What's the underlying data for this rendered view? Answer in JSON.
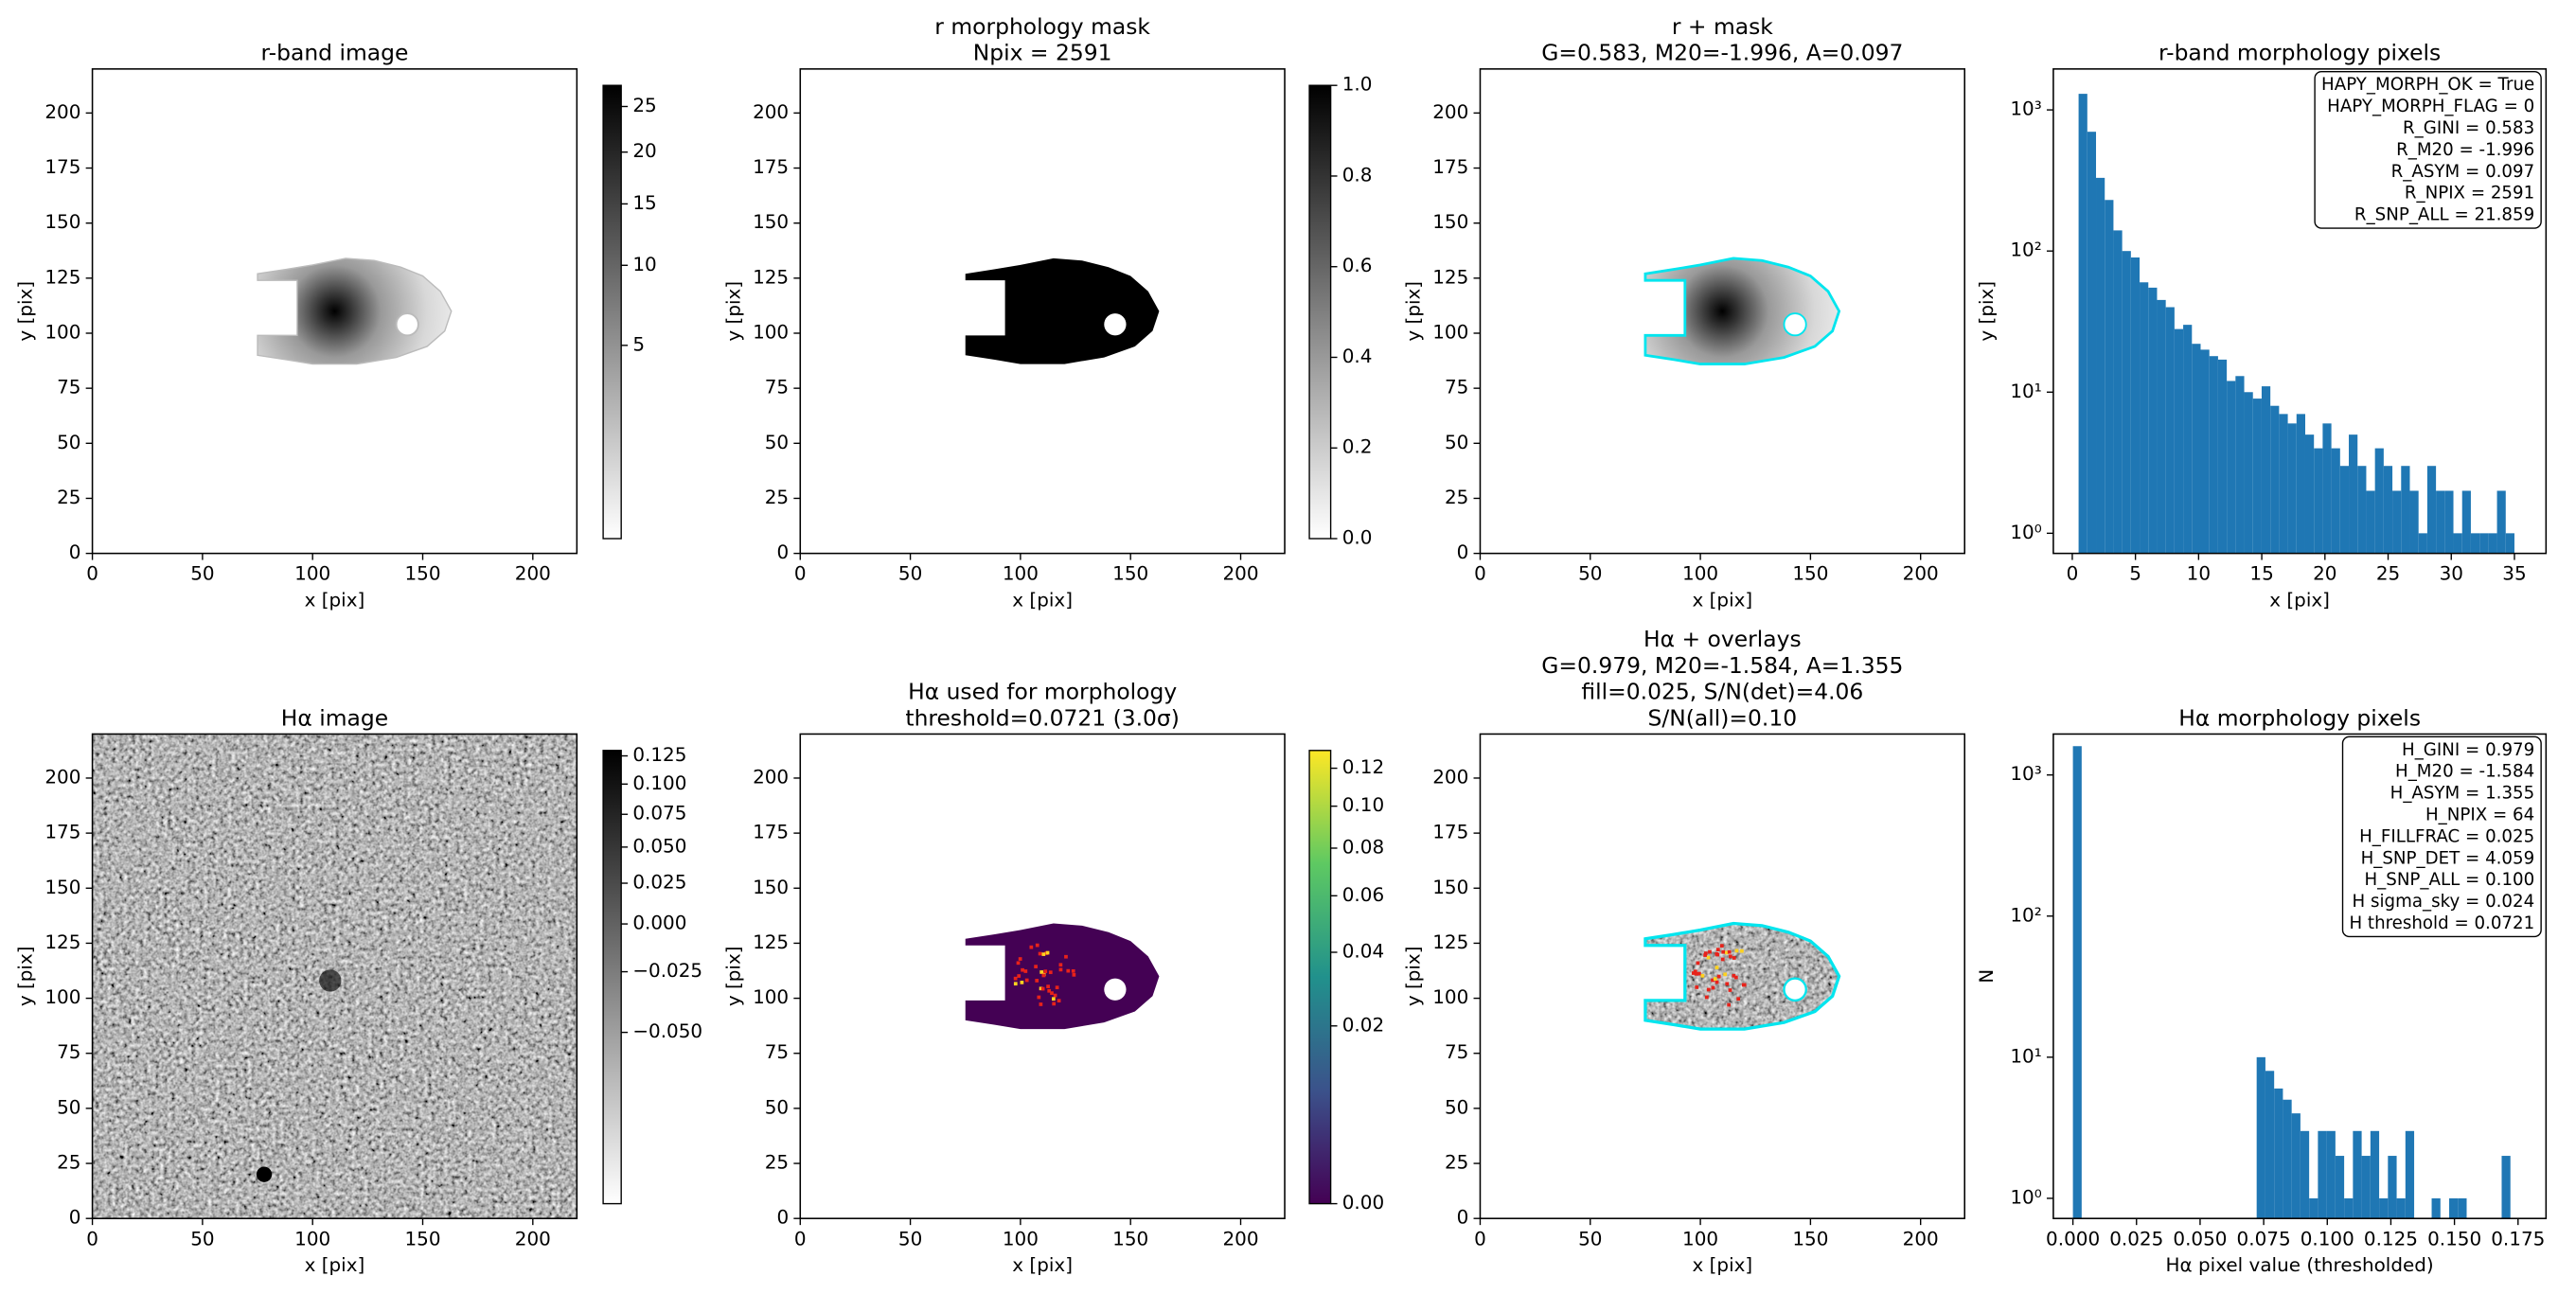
{
  "chart_data": [
    {
      "type": "image",
      "title": [
        "r-band image"
      ],
      "xlabel": "x [pix]",
      "ylabel": "y [pix]",
      "xlim": [
        0,
        220
      ],
      "ylim": [
        0,
        220
      ],
      "xticks": [
        0,
        50,
        100,
        150,
        200
      ],
      "yticks": [
        0,
        25,
        50,
        75,
        100,
        125,
        150,
        175,
        200
      ],
      "colorbar": {
        "lim": [
          0,
          27.5
        ],
        "ticks": [
          5,
          10,
          15,
          20,
          25
        ],
        "scale": "sqrt",
        "colormap": "gray_r"
      }
    },
    {
      "type": "image",
      "title": [
        "r morphology mask",
        "Npix = 2591"
      ],
      "xlabel": "x [pix]",
      "ylabel": "y [pix]",
      "xlim": [
        0,
        220
      ],
      "ylim": [
        0,
        220
      ],
      "xticks": [
        0,
        50,
        100,
        150,
        200
      ],
      "yticks": [
        0,
        25,
        50,
        75,
        100,
        125,
        150,
        175,
        200
      ],
      "colorbar": {
        "lim": [
          0,
          1
        ],
        "ticks": [
          {
            "value": 0,
            "label": "0.0"
          },
          0.2,
          0.4,
          0.6,
          0.8,
          {
            "value": 1,
            "label": "1.0"
          }
        ],
        "scale": "linear",
        "colormap": "gray_r"
      }
    },
    {
      "type": "image",
      "title": [
        "r + mask",
        "G=0.583, M20=-1.996, A=0.097"
      ],
      "xlabel": "x [pix]",
      "ylabel": "y [pix]",
      "xlim": [
        0,
        220
      ],
      "ylim": [
        0,
        220
      ],
      "xticks": [
        0,
        50,
        100,
        150,
        200
      ],
      "yticks": [
        0,
        25,
        50,
        75,
        100,
        125,
        150,
        175,
        200
      ]
    },
    {
      "type": "histogram",
      "title": [
        "r-band morphology pixels"
      ],
      "xlabel": "x [pix]",
      "ylabel": "y [pix]",
      "color": "#1f77b4",
      "log_y": true,
      "xlim": [
        -1.5,
        37.5
      ],
      "ylim": [
        0.72,
        1950
      ],
      "xticks": [
        0,
        5,
        10,
        15,
        20,
        25,
        30,
        35
      ],
      "yticks": [
        {
          "value": 1,
          "label": "10⁰"
        },
        {
          "value": 10,
          "label": "10¹"
        },
        {
          "value": 100,
          "label": "10²"
        },
        {
          "value": 1000,
          "label": "10³"
        }
      ],
      "bins": [
        0.5,
        1.19,
        1.88,
        2.57,
        3.26,
        3.95,
        4.64,
        5.33,
        6.02,
        6.71,
        7.4,
        8.09,
        8.78,
        9.47,
        10.16,
        10.85,
        11.54,
        12.23,
        12.92,
        13.61,
        14.3,
        14.99,
        15.68,
        16.37,
        17.06,
        17.75,
        18.44,
        19.13,
        19.82,
        20.51,
        21.2,
        21.89,
        22.58,
        23.27,
        23.96,
        24.65,
        25.34,
        26.03,
        26.72,
        27.41,
        28.1,
        28.79,
        29.48,
        30.17,
        30.86,
        31.55,
        32.24,
        32.93,
        33.62,
        34.31,
        35.0
      ],
      "values": [
        1300,
        700,
        330,
        230,
        140,
        100,
        90,
        60,
        55,
        45,
        40,
        28,
        30,
        22,
        20,
        18,
        17,
        12,
        13,
        10,
        9,
        11,
        8,
        7,
        6,
        7,
        5,
        4,
        6,
        4,
        3,
        5,
        3,
        2,
        4,
        3,
        2,
        3,
        2,
        1,
        3,
        2,
        2,
        1,
        2,
        1,
        1,
        1,
        2,
        1
      ],
      "annotation_lines": [
        "HAPY_MORPH_OK = True",
        "HAPY_MORPH_FLAG = 0",
        "R_GINI = 0.583",
        "R_M20 = -1.996",
        "R_ASYM = 0.097",
        "R_NPIX = 2591",
        "R_SNP_ALL = 21.859"
      ]
    },
    {
      "type": "image",
      "title": [
        "Hα image"
      ],
      "xlabel": "x [pix]",
      "ylabel": "y [pix]",
      "xlim": [
        0,
        220
      ],
      "ylim": [
        0,
        220
      ],
      "xticks": [
        0,
        50,
        100,
        150,
        200
      ],
      "yticks": [
        0,
        25,
        50,
        75,
        100,
        125,
        150,
        175,
        200
      ],
      "colorbar": {
        "lim": [
          -0.08,
          0.13
        ],
        "ticks": [
          0.125,
          {
            "value": 0.1,
            "label": "0.100"
          },
          0.075,
          {
            "value": 0.05,
            "label": "0.050"
          },
          0.025,
          {
            "value": 0,
            "label": "0.000"
          },
          {
            "value": -0.025,
            "label": "−0.025"
          },
          {
            "value": -0.05,
            "label": "−0.050"
          }
        ],
        "scale": "sqrt",
        "colormap": "gray_r"
      }
    },
    {
      "type": "image",
      "title": [
        "Hα used for morphology",
        "threshold=0.0721 (3.0σ)"
      ],
      "xlabel": "x [pix]",
      "ylabel": "y [pix]",
      "xlim": [
        0,
        220
      ],
      "ylim": [
        0,
        220
      ],
      "xticks": [
        0,
        50,
        100,
        150,
        200
      ],
      "yticks": [
        0,
        25,
        50,
        75,
        100,
        125,
        150,
        175,
        200
      ],
      "colorbar": {
        "lim": [
          0,
          0.13
        ],
        "ticks": [
          {
            "value": 0,
            "label": "0.00"
          },
          0.02,
          0.04,
          0.06,
          0.08,
          {
            "value": 0.1,
            "label": "0.10"
          },
          0.12
        ],
        "scale": "sqrt",
        "colormap": "viridis"
      }
    },
    {
      "type": "image",
      "title": [
        "Hα + overlays",
        "G=0.979, M20=-1.584, A=1.355",
        "fill=0.025, S/N(det)=4.06",
        "S/N(all)=0.10"
      ],
      "xlabel": "x [pix]",
      "ylabel": "y [pix]",
      "xlim": [
        0,
        220
      ],
      "ylim": [
        0,
        220
      ],
      "xticks": [
        0,
        50,
        100,
        150,
        200
      ],
      "yticks": [
        0,
        25,
        50,
        75,
        100,
        125,
        150,
        175,
        200
      ]
    },
    {
      "type": "histogram",
      "title": [
        "Hα morphology pixels"
      ],
      "xlabel": "Hα pixel value (thresholded)",
      "ylabel": "N",
      "color": "#1f77b4",
      "log_y": true,
      "xlim": [
        -0.0077,
        0.186
      ],
      "ylim": [
        0.72,
        1950
      ],
      "xticks": [
        {
          "value": 0,
          "label": "0.000"
        },
        0.025,
        {
          "value": 0.05,
          "label": "0.050"
        },
        0.075,
        {
          "value": 0.1,
          "label": "0.100"
        },
        0.125,
        {
          "value": 0.15,
          "label": "0.150"
        },
        0.175
      ],
      "yticks": [
        {
          "value": 1,
          "label": "10⁰"
        },
        {
          "value": 10,
          "label": "10¹"
        },
        {
          "value": 100,
          "label": "10²"
        },
        {
          "value": 1000,
          "label": "10³"
        }
      ],
      "bins": [
        0,
        0.00344,
        0.00688,
        0.01032,
        0.01376,
        0.0172,
        0.02064,
        0.02408,
        0.02752,
        0.03096,
        0.0344,
        0.03784,
        0.04128,
        0.04472,
        0.04816,
        0.0516,
        0.05504,
        0.05848,
        0.06192,
        0.06536,
        0.0688,
        0.07224,
        0.07568,
        0.07912,
        0.08256,
        0.086,
        0.08944,
        0.09288,
        0.09632,
        0.09976,
        0.1032,
        0.10664,
        0.11008,
        0.11352,
        0.11696,
        0.1204,
        0.12384,
        0.12728,
        0.13072,
        0.13416,
        0.1376,
        0.14104,
        0.14448,
        0.14792,
        0.15136,
        0.1548,
        0.15824,
        0.16168,
        0.16512,
        0.16856,
        0.172
      ],
      "values": [
        1600,
        0,
        0,
        0,
        0,
        0,
        0,
        0,
        0,
        0,
        0,
        0,
        0,
        0,
        0,
        0,
        0,
        0,
        0,
        0,
        0,
        10,
        8,
        6,
        5,
        4,
        3,
        1,
        3,
        3,
        2,
        1,
        3,
        2,
        3,
        1,
        2,
        1,
        3,
        0,
        0,
        1,
        0,
        1,
        1,
        0,
        0,
        0,
        0,
        2
      ],
      "annotation_lines": [
        "H_GINI = 0.979",
        "H_M20 = -1.584",
        "H_ASYM = 1.355",
        "H_NPIX = 64",
        "H_FILLFRAC = 0.025",
        "H_SNP_DET = 4.059",
        "H_SNP_ALL = 0.100",
        "H sigma_sky = 0.024",
        "H threshold = 0.0721"
      ]
    }
  ]
}
